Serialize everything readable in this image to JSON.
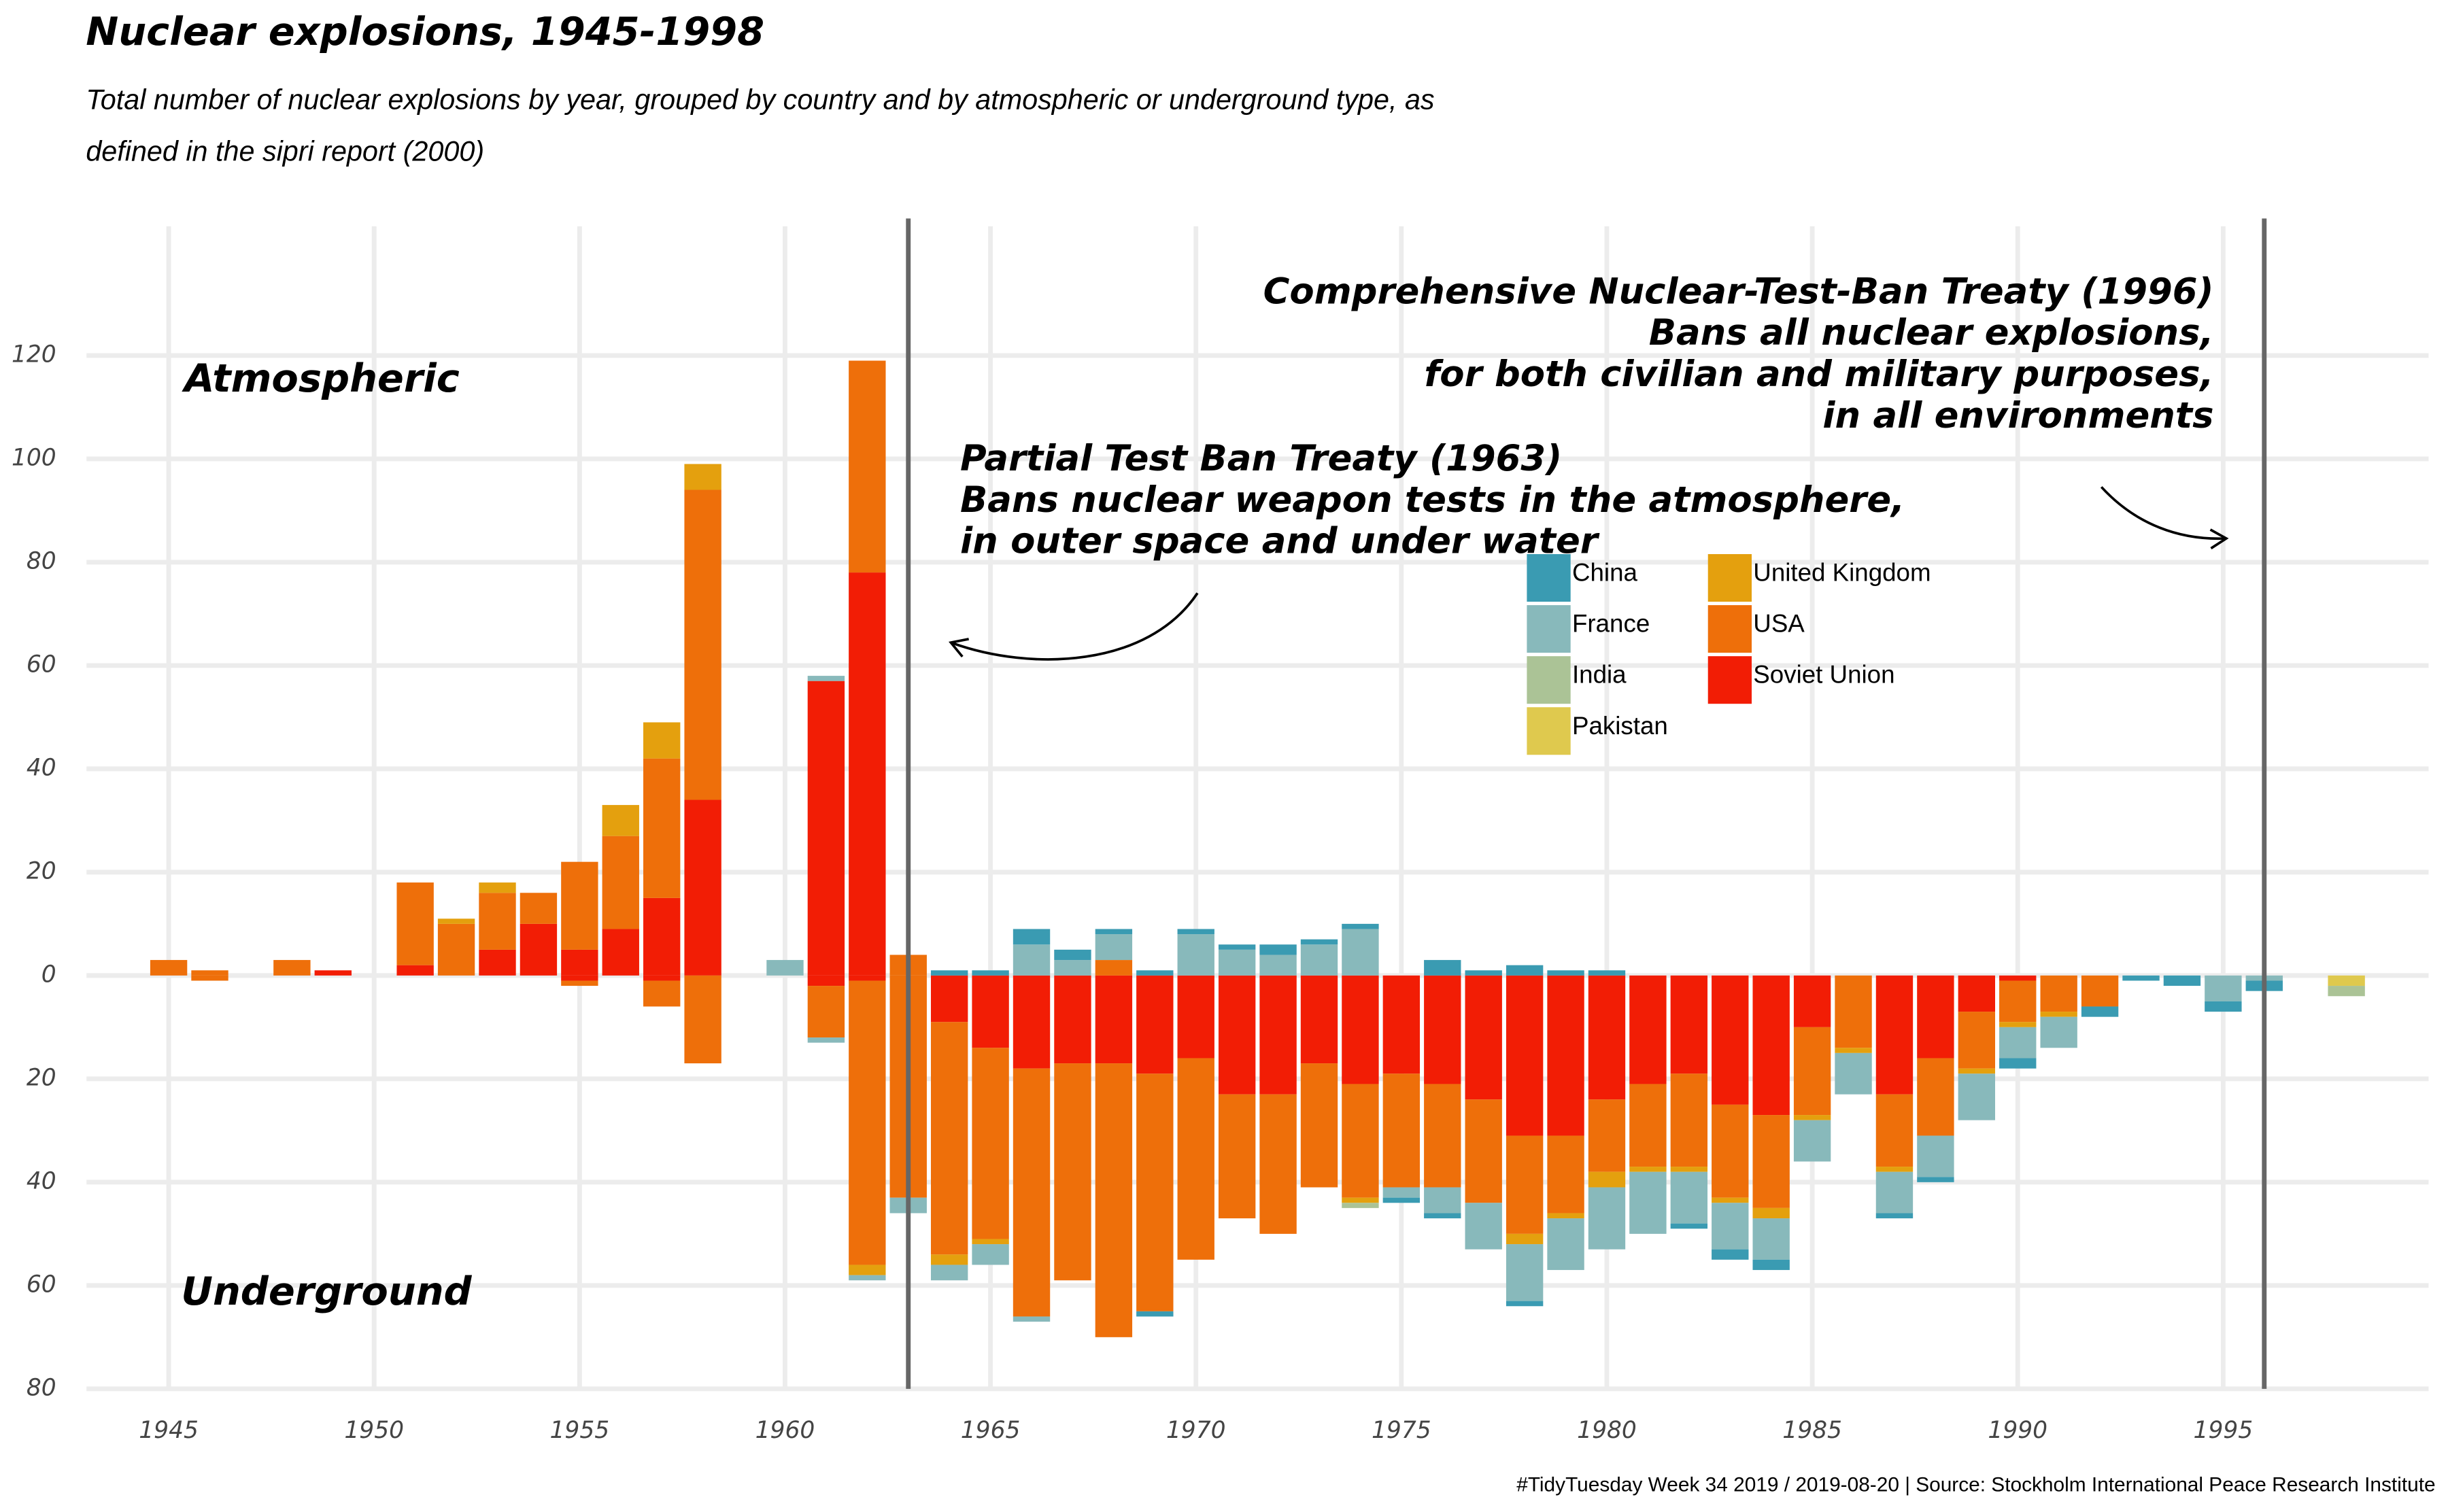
{
  "chart_data": {
    "type": "diverging-stacked-bar",
    "title": "Nuclear explosions, 1945-1998",
    "subtitle": "Total number of nuclear explosions by year, grouped by country and by atmospheric or underground type, as defined in the sipri report (2000)",
    "caption": "#TidyTuesday Week 34 2019 / 2019-08-20 | Source: Stockholm International Peace Research Institute",
    "panel_labels": [
      "Atmospheric",
      "Underground"
    ],
    "treaties": [
      {
        "x": 1963,
        "lines": [
          "Partial Test Ban Treaty (1963)",
          "Bans nuclear weapon tests in the atmosphere,",
          "in outer space and under water"
        ]
      },
      {
        "x": 1996,
        "lines": [
          "Comprehensive Nuclear-Test-Ban Treaty (1996)",
          "Bans all nuclear explosions,",
          "for both civilian and military purposes,",
          "in all environments"
        ]
      }
    ],
    "x": [
      1945,
      1946,
      1947,
      1948,
      1949,
      1950,
      1951,
      1952,
      1953,
      1954,
      1955,
      1956,
      1957,
      1958,
      1959,
      1960,
      1961,
      1962,
      1963,
      1964,
      1965,
      1966,
      1967,
      1968,
      1969,
      1970,
      1971,
      1972,
      1973,
      1974,
      1975,
      1976,
      1977,
      1978,
      1979,
      1980,
      1981,
      1982,
      1983,
      1984,
      1985,
      1986,
      1987,
      1988,
      1989,
      1990,
      1991,
      1992,
      1993,
      1994,
      1995,
      1996,
      1997,
      1998
    ],
    "series": [
      {
        "name": "China",
        "color": "#3a9bb2",
        "atmospheric": [
          0,
          0,
          0,
          0,
          0,
          0,
          0,
          0,
          0,
          0,
          0,
          0,
          0,
          0,
          0,
          0,
          0,
          0,
          0,
          1,
          1,
          3,
          2,
          1,
          1,
          1,
          1,
          2,
          1,
          1,
          0,
          3,
          1,
          2,
          1,
          1,
          0,
          0,
          0,
          0,
          0,
          0,
          0,
          0,
          0,
          0,
          0,
          0,
          0,
          0,
          0,
          0,
          0,
          0
        ],
        "underground": [
          0,
          0,
          0,
          0,
          0,
          0,
          0,
          0,
          0,
          0,
          0,
          0,
          0,
          0,
          0,
          0,
          0,
          0,
          0,
          0,
          0,
          0,
          0,
          0,
          -1,
          0,
          0,
          0,
          0,
          0,
          -1,
          -1,
          0,
          -1,
          0,
          0,
          0,
          -1,
          -2,
          -2,
          0,
          0,
          -1,
          -1,
          0,
          -2,
          0,
          -2,
          -1,
          -2,
          -2,
          -2,
          0,
          0
        ]
      },
      {
        "name": "France",
        "color": "#88b9bb",
        "atmospheric": [
          0,
          0,
          0,
          0,
          0,
          0,
          0,
          0,
          0,
          0,
          0,
          0,
          0,
          0,
          0,
          3,
          1,
          0,
          0,
          0,
          0,
          6,
          3,
          5,
          0,
          8,
          5,
          4,
          6,
          9,
          0,
          0,
          0,
          0,
          0,
          0,
          0,
          0,
          0,
          0,
          0,
          0,
          0,
          0,
          0,
          0,
          0,
          0,
          0,
          0,
          0,
          0,
          0,
          0
        ],
        "underground": [
          0,
          0,
          0,
          0,
          0,
          0,
          0,
          0,
          0,
          0,
          0,
          0,
          0,
          0,
          0,
          0,
          -1,
          -1,
          -3,
          -3,
          -4,
          -1,
          0,
          0,
          0,
          0,
          0,
          0,
          0,
          0,
          -2,
          -5,
          -9,
          -11,
          -10,
          -12,
          -12,
          -10,
          -9,
          -8,
          -8,
          -8,
          -8,
          -8,
          -9,
          -6,
          -6,
          0,
          0,
          0,
          -5,
          -1,
          0,
          0
        ]
      },
      {
        "name": "India",
        "color": "#abc396",
        "atmospheric": [
          0,
          0,
          0,
          0,
          0,
          0,
          0,
          0,
          0,
          0,
          0,
          0,
          0,
          0,
          0,
          0,
          0,
          0,
          0,
          0,
          0,
          0,
          0,
          0,
          0,
          0,
          0,
          0,
          0,
          0,
          0,
          0,
          0,
          0,
          0,
          0,
          0,
          0,
          0,
          0,
          0,
          0,
          0,
          0,
          0,
          0,
          0,
          0,
          0,
          0,
          0,
          0,
          0,
          0
        ],
        "underground": [
          0,
          0,
          0,
          0,
          0,
          0,
          0,
          0,
          0,
          0,
          0,
          0,
          0,
          0,
          0,
          0,
          0,
          0,
          0,
          0,
          0,
          0,
          0,
          0,
          0,
          0,
          0,
          0,
          0,
          -1,
          0,
          0,
          0,
          0,
          0,
          0,
          0,
          0,
          0,
          0,
          0,
          0,
          0,
          0,
          0,
          0,
          0,
          0,
          0,
          0,
          0,
          0,
          0,
          -2
        ]
      },
      {
        "name": "Pakistan",
        "color": "#dfc94e",
        "atmospheric": [
          0,
          0,
          0,
          0,
          0,
          0,
          0,
          0,
          0,
          0,
          0,
          0,
          0,
          0,
          0,
          0,
          0,
          0,
          0,
          0,
          0,
          0,
          0,
          0,
          0,
          0,
          0,
          0,
          0,
          0,
          0,
          0,
          0,
          0,
          0,
          0,
          0,
          0,
          0,
          0,
          0,
          0,
          0,
          0,
          0,
          0,
          0,
          0,
          0,
          0,
          0,
          0,
          0,
          0
        ],
        "underground": [
          0,
          0,
          0,
          0,
          0,
          0,
          0,
          0,
          0,
          0,
          0,
          0,
          0,
          0,
          0,
          0,
          0,
          0,
          0,
          0,
          0,
          0,
          0,
          0,
          0,
          0,
          0,
          0,
          0,
          0,
          0,
          0,
          0,
          0,
          0,
          0,
          0,
          0,
          0,
          0,
          0,
          0,
          0,
          0,
          0,
          0,
          0,
          0,
          0,
          0,
          0,
          0,
          0,
          -2
        ]
      },
      {
        "name": "United Kingdom",
        "color": "#e4a00e",
        "atmospheric": [
          0,
          0,
          0,
          0,
          0,
          0,
          0,
          1,
          2,
          0,
          0,
          6,
          7,
          5,
          0,
          0,
          0,
          0,
          0,
          0,
          0,
          0,
          0,
          0,
          0,
          0,
          0,
          0,
          0,
          0,
          0,
          0,
          0,
          0,
          0,
          0,
          0,
          0,
          0,
          0,
          0,
          0,
          0,
          0,
          0,
          0,
          0,
          0,
          0,
          0,
          0,
          0,
          0,
          0
        ],
        "underground": [
          0,
          0,
          0,
          0,
          0,
          0,
          0,
          0,
          0,
          0,
          0,
          0,
          0,
          0,
          0,
          0,
          0,
          -2,
          0,
          -2,
          -1,
          0,
          0,
          0,
          0,
          0,
          0,
          0,
          0,
          -1,
          0,
          0,
          0,
          -2,
          -1,
          -3,
          -1,
          -1,
          -1,
          -2,
          -1,
          -1,
          -1,
          0,
          -1,
          -1,
          -1,
          0,
          0,
          0,
          0,
          0,
          0,
          0
        ]
      },
      {
        "name": "USA",
        "color": "#ee6f0a",
        "atmospheric": [
          3,
          1,
          0,
          3,
          0,
          0,
          16,
          10,
          11,
          6,
          17,
          18,
          27,
          60,
          0,
          0,
          0,
          41,
          4,
          0,
          0,
          0,
          0,
          3,
          0,
          0,
          0,
          0,
          0,
          0,
          0,
          0,
          0,
          0,
          0,
          0,
          0,
          0,
          0,
          0,
          0,
          0,
          0,
          0,
          0,
          0,
          0,
          0,
          0,
          0,
          0,
          0,
          0,
          0
        ],
        "underground": [
          0,
          -1,
          0,
          0,
          0,
          0,
          0,
          0,
          0,
          0,
          -1,
          0,
          -5,
          -17,
          0,
          0,
          -10,
          -55,
          -43,
          -45,
          -37,
          -48,
          -42,
          -53,
          -46,
          -39,
          -24,
          -27,
          -24,
          -22,
          -22,
          -20,
          -20,
          -19,
          -15,
          -14,
          -16,
          -18,
          -18,
          -18,
          -17,
          -14,
          -14,
          -15,
          -11,
          -8,
          -7,
          -6,
          0,
          0,
          0,
          0,
          0,
          0
        ]
      },
      {
        "name": "Soviet Union",
        "color": "#f21d05",
        "atmospheric": [
          0,
          0,
          0,
          0,
          1,
          0,
          2,
          0,
          5,
          10,
          5,
          9,
          15,
          34,
          0,
          0,
          57,
          78,
          0,
          0,
          0,
          0,
          0,
          0,
          0,
          0,
          0,
          0,
          0,
          0,
          0,
          0,
          0,
          0,
          0,
          0,
          0,
          0,
          0,
          0,
          0,
          0,
          0,
          0,
          0,
          0,
          0,
          0,
          0,
          0,
          0,
          0,
          0,
          0
        ],
        "underground": [
          0,
          0,
          0,
          0,
          0,
          0,
          0,
          0,
          0,
          0,
          -1,
          0,
          -1,
          0,
          0,
          0,
          -2,
          -1,
          0,
          -9,
          -14,
          -18,
          -17,
          -17,
          -19,
          -16,
          -23,
          -23,
          -17,
          -21,
          -19,
          -21,
          -24,
          -31,
          -31,
          -24,
          -21,
          -19,
          -25,
          -27,
          -10,
          0,
          -23,
          -16,
          -7,
          -1,
          0,
          0,
          0,
          0,
          0,
          0,
          0,
          0
        ]
      }
    ],
    "xlim": [
      1943,
      2000
    ],
    "xticks": [
      1945,
      1950,
      1955,
      1960,
      1965,
      1970,
      1975,
      1980,
      1985,
      1990,
      1995
    ],
    "ylim": [
      -80,
      145
    ],
    "yticks": [
      {
        "value": -80,
        "label": "80"
      },
      {
        "value": -60,
        "label": "60"
      },
      {
        "value": -40,
        "label": "40"
      },
      {
        "value": -20,
        "label": "20"
      },
      0,
      20,
      40,
      60,
      80,
      100,
      120
    ],
    "grid": true,
    "legend": "inside"
  }
}
